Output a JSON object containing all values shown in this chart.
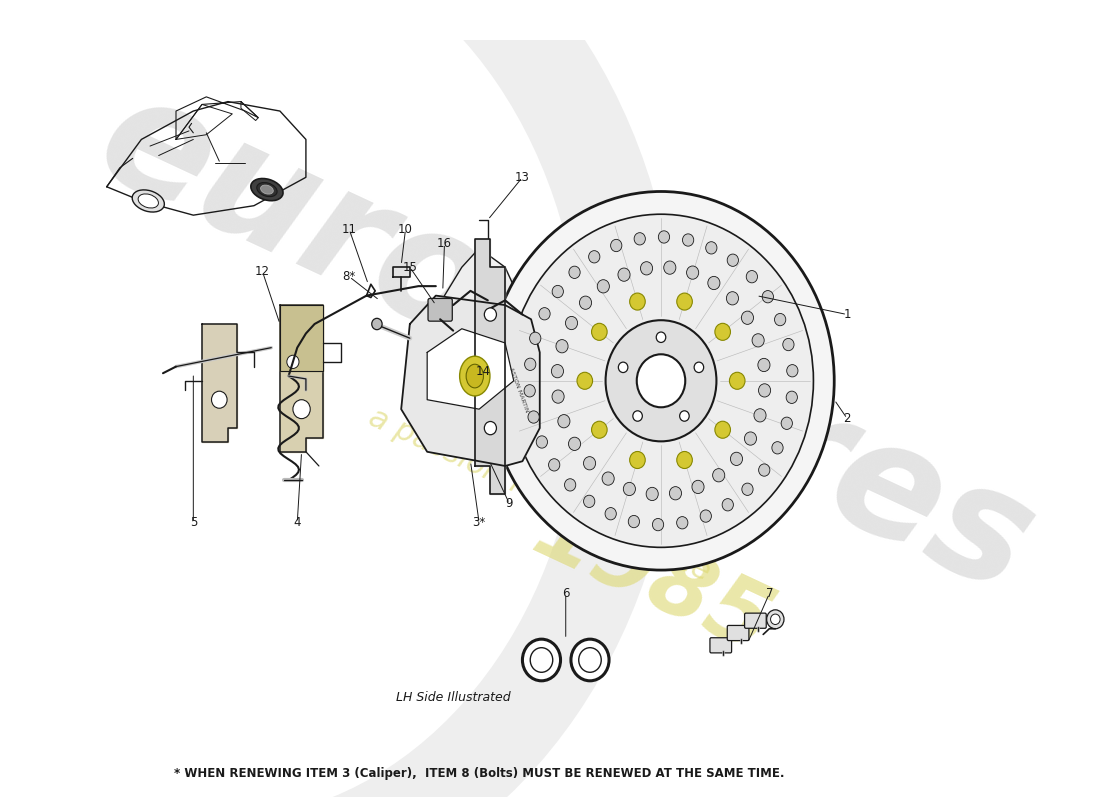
{
  "background_color": "#ffffff",
  "line_color": "#1a1a1a",
  "light_line": "#555555",
  "watermark_euro_color": "#d8d8d8",
  "watermark_1985_color": "#ddd870",
  "watermark_passion_color": "#ddd870",
  "footer_note": "* WHEN RENEWING ITEM 3 (Caliper),  ITEM 8 (Bolts) MUST BE RENEWED AT THE SAME TIME.",
  "lh_side_label": "LH Side Illustrated",
  "yellow_accent": "#d4c832",
  "disc_face_color": "#f5f5f5",
  "disc_inner_color": "#e8e8e8",
  "caliper_color": "#e8e8e8",
  "pad_color": "#d8d0b0",
  "plate_color": "#f0f0f0",
  "part_numbers": [
    "1",
    "2",
    "3*",
    "4",
    "5",
    "6",
    "7",
    "8*",
    "9",
    "10",
    "11",
    "12",
    "13",
    "14",
    "15",
    "16"
  ]
}
